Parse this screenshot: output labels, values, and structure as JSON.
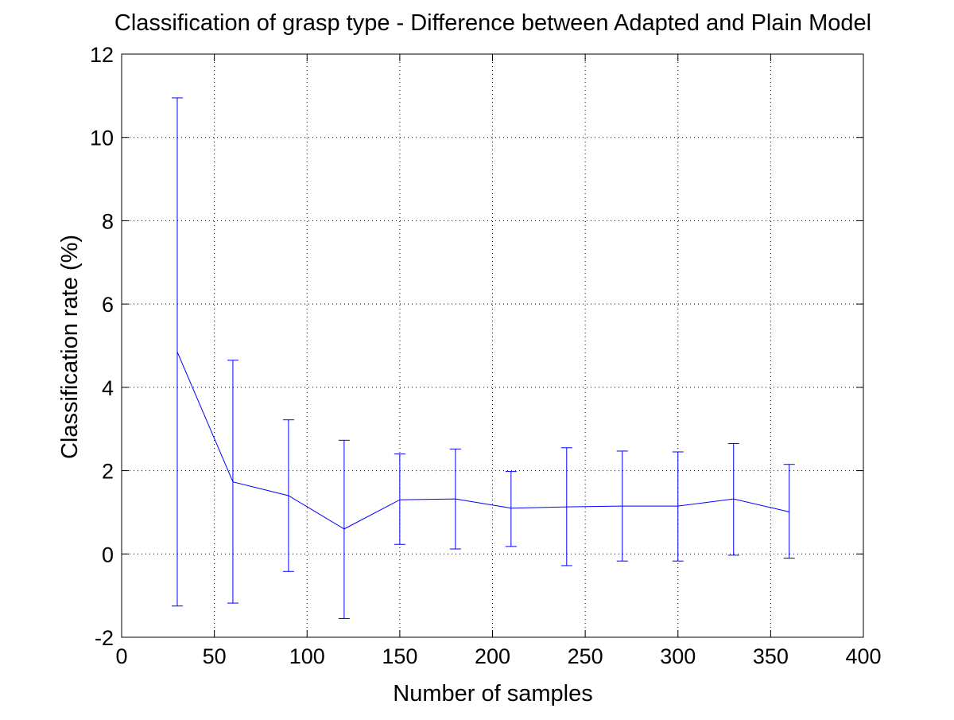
{
  "chart_data": {
    "type": "line",
    "title": "Classification of grasp type - Difference between Adapted and Plain Model",
    "xlabel": "Number of samples",
    "ylabel": "Classification rate (%)",
    "xlim": [
      0,
      400
    ],
    "ylim": [
      -2,
      12
    ],
    "xticks": [
      0,
      50,
      100,
      150,
      200,
      250,
      300,
      350,
      400
    ],
    "yticks": [
      -2,
      0,
      2,
      4,
      6,
      8,
      10,
      12
    ],
    "xtick_labels": [
      "0",
      "50",
      "100",
      "150",
      "200",
      "250",
      "300",
      "350",
      "400"
    ],
    "ytick_labels": [
      "-2",
      "0",
      "2",
      "4",
      "6",
      "8",
      "10",
      "12"
    ],
    "grid": true,
    "series": [
      {
        "color": "#0000ff",
        "error_bars": true,
        "x": [
          30,
          60,
          90,
          120,
          150,
          180,
          210,
          240,
          270,
          300,
          330,
          360
        ],
        "y": [
          4.85,
          1.73,
          1.4,
          0.6,
          1.3,
          1.32,
          1.1,
          1.13,
          1.15,
          1.15,
          1.32,
          1.01
        ],
        "lower": [
          -1.25,
          -1.18,
          -0.42,
          -1.55,
          0.23,
          0.12,
          0.18,
          -0.28,
          -0.17,
          -0.17,
          -0.03,
          -0.1
        ],
        "upper": [
          10.95,
          4.65,
          3.22,
          2.73,
          2.4,
          2.52,
          1.98,
          2.55,
          2.47,
          2.45,
          2.65,
          2.15
        ]
      }
    ]
  }
}
